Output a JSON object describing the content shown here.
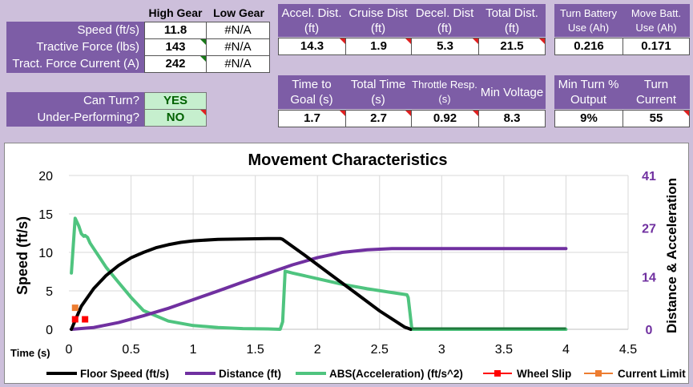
{
  "gear_table": {
    "col_high": "High Gear",
    "col_low": "Low Gear",
    "rows": [
      {
        "label": "Speed (ft/s)",
        "high": "11.8",
        "low": "#N/A"
      },
      {
        "label": "Tractive Force (lbs)",
        "high": "143",
        "low": "#N/A"
      },
      {
        "label": "Tract. Force Current (A)",
        "high": "242",
        "low": "#N/A"
      }
    ]
  },
  "status": {
    "rows": [
      {
        "label": "Can Turn?",
        "value": "YES"
      },
      {
        "label": "Under-Performing?",
        "value": "NO"
      }
    ]
  },
  "dist_table": {
    "headers": [
      "Accel. Dist. (ft)",
      "Cruise Dist (ft)",
      "Decel. Dist (ft)",
      "Total Dist. (ft)"
    ],
    "values": [
      "14.3",
      "1.9",
      "5.3",
      "21.5"
    ]
  },
  "batt_table": {
    "headers": [
      "Turn Battery Use (Ah)",
      "Move Batt. Use (Ah)"
    ],
    "values": [
      "0.216",
      "0.171"
    ]
  },
  "time_table": {
    "headers": [
      "Time to Goal (s)",
      "Total Time (s)",
      "Throttle Resp. (s)",
      "Min Voltage"
    ],
    "values": [
      "1.7",
      "2.7",
      "0.92",
      "8.3"
    ]
  },
  "turn_table": {
    "headers": [
      "Min Turn % Output",
      "Turn Current"
    ],
    "values": [
      "9%",
      "55"
    ]
  },
  "chart_data": {
    "type": "line",
    "title": "Movement Characteristics",
    "xlabel": "Time (s)",
    "ylabel": "Speed (ft/s)",
    "y2label": "Distance & Acceleration",
    "xlim": [
      0,
      4.5
    ],
    "ylim": [
      0,
      20
    ],
    "y2lim": [
      0,
      41
    ],
    "x_ticks": [
      "0",
      "0.5",
      "1",
      "1.5",
      "2",
      "2.5",
      "3",
      "3.5",
      "4",
      "4.5"
    ],
    "y_ticks": [
      "0",
      "5",
      "10",
      "15",
      "20"
    ],
    "y2_ticks": [
      "0",
      "14",
      "27",
      "41"
    ],
    "grid": true,
    "legend_position": "bottom",
    "series": [
      {
        "name": "Floor Speed (ft/s)",
        "color": "#000000",
        "axis": "left",
        "x": [
          0.02,
          0.1,
          0.2,
          0.3,
          0.4,
          0.5,
          0.6,
          0.7,
          0.8,
          0.9,
          1.0,
          1.2,
          1.4,
          1.6,
          1.7,
          1.72,
          1.9,
          2.1,
          2.3,
          2.5,
          2.7,
          2.75
        ],
        "y": [
          0,
          3.0,
          5.3,
          7.0,
          8.3,
          9.3,
          10.0,
          10.6,
          11.0,
          11.3,
          11.5,
          11.7,
          11.75,
          11.8,
          11.8,
          11.7,
          9.6,
          7.2,
          4.8,
          2.4,
          0.3,
          0
        ]
      },
      {
        "name": "Distance (ft)",
        "color": "#7030a0",
        "axis": "right",
        "x": [
          0.02,
          0.2,
          0.4,
          0.6,
          0.8,
          1.0,
          1.2,
          1.4,
          1.6,
          1.8,
          2.0,
          2.2,
          2.4,
          2.6,
          2.8,
          3.0,
          4.0
        ],
        "y": [
          0,
          0.5,
          1.8,
          3.6,
          5.6,
          7.9,
          10.2,
          12.6,
          14.9,
          17.2,
          19.1,
          20.5,
          21.2,
          21.5,
          21.5,
          21.5,
          21.5
        ]
      },
      {
        "name": "ABS(Acceleration) (ft/s^2)",
        "color": "#4fc47f",
        "axis": "right",
        "x": [
          0.02,
          0.05,
          0.08,
          0.1,
          0.12,
          0.13,
          0.15,
          0.17,
          0.2,
          0.25,
          0.3,
          0.4,
          0.5,
          0.6,
          0.8,
          1.0,
          1.2,
          1.4,
          1.6,
          1.7,
          1.72,
          1.74,
          1.8,
          2.0,
          2.2,
          2.4,
          2.6,
          2.72,
          2.73,
          2.76,
          4.0
        ],
        "y": [
          15,
          29.6,
          27.5,
          25.5,
          24.8,
          25.0,
          24.5,
          23.0,
          21.5,
          19.0,
          16.5,
          12.5,
          8.5,
          5.0,
          2.2,
          1.0,
          0.5,
          0.2,
          0.1,
          0,
          2.0,
          15.5,
          15.0,
          13.5,
          12.0,
          10.8,
          9.8,
          9.2,
          8.5,
          0,
          0
        ]
      },
      {
        "name": "Wheel Slip",
        "color": "#ff0000",
        "axis": "left",
        "marker": "square",
        "x": [
          0.05,
          0.13
        ],
        "y": [
          1.3,
          1.3
        ]
      },
      {
        "name": "Current Limit",
        "color": "#ed7d31",
        "axis": "left",
        "marker": "square",
        "x": [
          0.05
        ],
        "y": [
          2.8
        ]
      }
    ]
  }
}
